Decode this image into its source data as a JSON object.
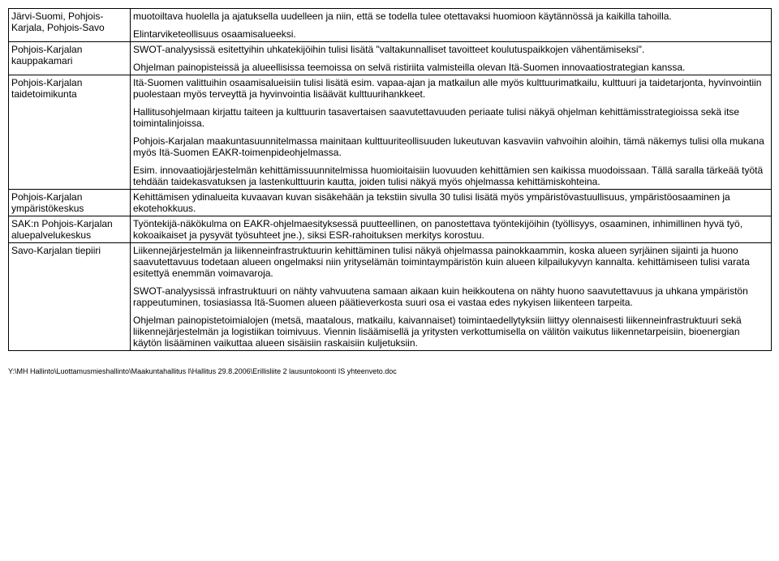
{
  "rows": [
    {
      "left": "Järvi-Suomi, Pohjois-Karjala, Pohjois-Savo",
      "right": [
        "muotoiltava huolella ja ajatuksella uudelleen ja niin, että se todella tulee otettavaksi huomioon käytännössä ja kaikilla tahoilla.",
        "Elintarviketeollisuus osaamisalueeksi."
      ]
    },
    {
      "left": "Pohjois-Karjalan kauppakamari",
      "right": [
        "SWOT-analyysissä esitettyihin uhkatekijöihin tulisi lisätä \"valtakunnalliset tavoitteet koulutuspaikkojen vähentämiseksi\".",
        "Ohjelman painopisteissä ja alueellisissa teemoissa on selvä ristiriita valmisteilla olevan Itä-Suomen innovaatiostrategian kanssa."
      ]
    },
    {
      "left": "Pohjois-Karjalan taidetoimikunta",
      "right": [
        "Itä-Suomen valittuihin osaamisalueisiin tulisi lisätä esim. vapaa-ajan ja matkailun alle myös kulttuurimatkailu, kulttuuri ja taidetarjonta, hyvinvointiin puolestaan myös terveyttä ja hyvinvointia lisäävät kulttuurihankkeet.",
        "Hallitusohjelmaan kirjattu taiteen ja kulttuurin tasavertaisen saavutettavuuden periaate tulisi näkyä ohjelman kehittämisstrategioissa sekä itse toimintalinjoissa.",
        "Pohjois-Karjalan maakuntasuunnitelmassa mainitaan kulttuuriteollisuuden lukeutuvan kasvaviin vahvoihin aloihin, tämä näkemys tulisi olla mukana myös Itä-Suomen EAKR-toimenpideohjelmassa.",
        "Esim. innovaatiojärjestelmän kehittämissuunnitelmissa huomioitaisiin luovuuden kehittämien sen kaikissa muodoissaan. Tällä saralla tärkeää työtä tehdään taidekasvatuksen ja lastenkulttuurin kautta, joiden tulisi näkyä myös ohjelmassa kehittämiskohteina."
      ]
    },
    {
      "left": "Pohjois-Karjalan ympäristökeskus",
      "right": [
        "Kehittämisen ydinalueita kuvaavan kuvan sisäkehään ja tekstiin sivulla 30 tulisi lisätä myös ympäristövastuullisuus, ympäristöosaaminen ja ekotehokkuus."
      ]
    },
    {
      "left": "SAK:n Pohjois-Karjalan aluepalvelukeskus",
      "right": [
        "Työntekijä-näkökulma on EAKR-ohjelmaesityksessä puutteellinen, on panostettava työntekijöihin (työllisyys, osaaminen, inhimillinen hyvä työ, kokoaikaiset ja pysyvät työsuhteet jne.), siksi ESR-rahoituksen merkitys korostuu."
      ]
    },
    {
      "left": "Savo-Karjalan tiepiiri",
      "right": [
        "Liikennejärjestelmän ja liikenneinfrastruktuurin kehittäminen tulisi näkyä ohjelmassa painokkaammin, koska alueen syrjäinen sijainti ja huono saavutettavuus todetaan alueen ongelmaksi niin yrityselämän toimintaympäristön kuin alueen kilpailukyvyn kannalta. kehittämiseen tulisi varata esitettyä enemmän voimavaroja.",
        "SWOT-analyysissä infrastruktuuri on nähty vahvuutena samaan aikaan kuin heikkoutena on nähty huono saavutettavuus ja uhkana ympäristön rappeutuminen, tosiasiassa Itä-Suomen alueen päätieverkosta suuri osa ei vastaa edes nykyisen liikenteen tarpeita.",
        "Ohjelman painopistetoimialojen (metsä, maatalous, matkailu, kaivannaiset) toimintaedellytyksiin liittyy olennaisesti liikenneinfrastruktuuri sekä liikennejärjestelmän ja logistiikan toimivuus. Viennin lisäämisellä ja yritysten verkottumisella on välitön vaikutus liikennetarpeisiin, bioenergian käytön lisääminen vaikuttaa alueen sisäisiin raskaisiin kuljetuksiin."
      ]
    }
  ],
  "footer": "Y:\\MH Hallinto\\Luottamusmieshallinto\\Maakuntahallitus I\\Hallitus 29.8.2006\\Erillisliite 2 lausuntokoonti IS yhteenveto.doc"
}
